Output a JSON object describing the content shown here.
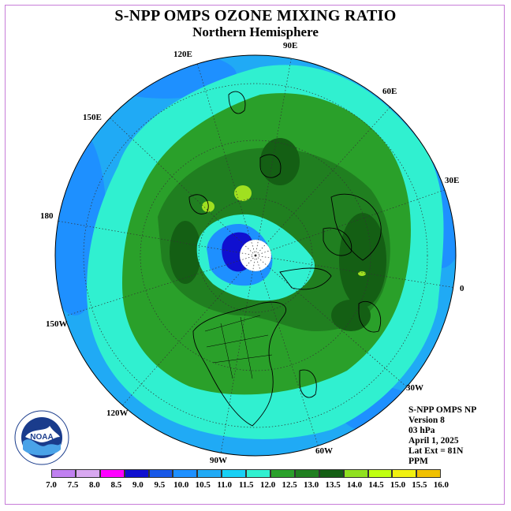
{
  "title": "S-NPP OMPS OZONE MIXING RATIO",
  "subtitle": "Northern Hemisphere",
  "longitude_labels": [
    "90E",
    "60E",
    "30E",
    "0",
    "30W",
    "60W",
    "90W",
    "120W",
    "150W",
    "180",
    "150E",
    "120E"
  ],
  "info": {
    "instrument": "S-NPP OMPS NP",
    "version": "Version 8",
    "level": "03 hPa",
    "date": "April 1, 2025",
    "lat_ext": "Lat Ext = 81N",
    "units": "PPM"
  },
  "logo": {
    "text": "NOAA",
    "ring_text": "NATIONAL OCEANIC AND ATMOSPHERIC ADMINISTRATION · U.S. DEPARTMENT OF COMMERCE"
  },
  "colorbar": {
    "ticks": [
      "7.0",
      "7.5",
      "8.0",
      "8.5",
      "9.0",
      "9.5",
      "10.0",
      "10.5",
      "11.0",
      "11.5",
      "12.0",
      "12.5",
      "13.0",
      "13.5",
      "14.0",
      "14.5",
      "15.0",
      "15.5",
      "16.0"
    ],
    "colors": [
      "#c080f0",
      "#d8a8f0",
      "#ff00ff",
      "#1010d0",
      "#1858e8",
      "#1e90ff",
      "#20aaf5",
      "#18d0f5",
      "#30f0d0",
      "#2aa02a",
      "#207f20",
      "#145f14",
      "#90e020",
      "#c0ff10",
      "#f0f010",
      "#f0c000",
      "#f09000",
      "#f05000",
      "#e80010",
      "#c00020",
      "#8b5a2b"
    ]
  },
  "map_colors": {
    "outer_light": "#20aaf5",
    "ring_cyan": "#30f0d0",
    "green_light": "#2aa02a",
    "green_mid": "#207f20",
    "green_dark": "#145f14",
    "blue_low": "#1e90ff",
    "blue_deep": "#1010d0",
    "lime": "#c0ff10",
    "polar_cap": "#ffffff"
  }
}
